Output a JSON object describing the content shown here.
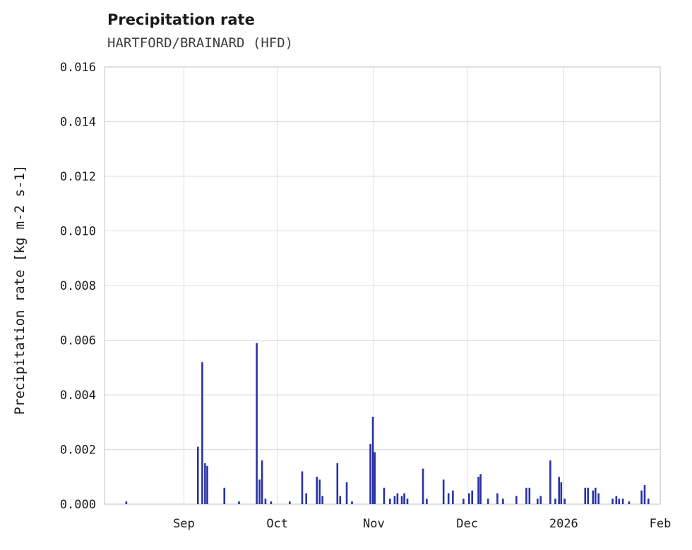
{
  "header": {
    "title": "Precipitation rate",
    "subtitle": "HARTFORD/BRAINARD (HFD)"
  },
  "chart_data": {
    "type": "bar",
    "title": "Precipitation rate",
    "subtitle": "HARTFORD/BRAINARD (HFD)",
    "xlabel": "",
    "ylabel": "Precipitation rate [kg m-2 s-1]",
    "ylim": [
      0,
      0.016
    ],
    "ytick_labels": [
      "0.000",
      "0.002",
      "0.004",
      "0.006",
      "0.008",
      "0.010",
      "0.012",
      "0.014",
      "0.016"
    ],
    "yticks": [
      0.0,
      0.002,
      0.004,
      0.006,
      0.008,
      0.01,
      0.012,
      0.014,
      0.016
    ],
    "x_domain_days": [
      -25.5,
      153
    ],
    "xticks_days": [
      0,
      30,
      61,
      91,
      122,
      153
    ],
    "xtick_labels": [
      "Sep",
      "Oct",
      "Nov",
      "Dec",
      "2026",
      "Feb"
    ],
    "x_units": "days since Sep 1 (2025-08-06 to 2026-02-01)",
    "grid": true,
    "legend": "none",
    "bar_color": "#2832a8",
    "grid_color": "#dcdcdc",
    "border_color": "#cccccc",
    "points": [
      {
        "d": -18.5,
        "v": 0.0001
      },
      {
        "d": 4.5,
        "v": 0.0021
      },
      {
        "d": 5.9,
        "v": 0.0052
      },
      {
        "d": 6.8,
        "v": 0.0015
      },
      {
        "d": 7.5,
        "v": 0.0014
      },
      {
        "d": 13.0,
        "v": 0.0006
      },
      {
        "d": 17.7,
        "v": 0.0001
      },
      {
        "d": 23.4,
        "v": 0.0059
      },
      {
        "d": 24.3,
        "v": 0.0009
      },
      {
        "d": 25.1,
        "v": 0.0016
      },
      {
        "d": 26.2,
        "v": 0.0002
      },
      {
        "d": 28.0,
        "v": 0.0001
      },
      {
        "d": 34.0,
        "v": 0.0001
      },
      {
        "d": 38.0,
        "v": 0.0012
      },
      {
        "d": 39.3,
        "v": 0.0004
      },
      {
        "d": 42.7,
        "v": 0.001
      },
      {
        "d": 43.6,
        "v": 0.0009
      },
      {
        "d": 44.5,
        "v": 0.0003
      },
      {
        "d": 49.3,
        "v": 0.0015
      },
      {
        "d": 50.2,
        "v": 0.0003
      },
      {
        "d": 52.3,
        "v": 0.0008
      },
      {
        "d": 54.0,
        "v": 0.0001
      },
      {
        "d": 59.9,
        "v": 0.0022
      },
      {
        "d": 60.7,
        "v": 0.0032
      },
      {
        "d": 61.3,
        "v": 0.0019
      },
      {
        "d": 64.3,
        "v": 0.0006
      },
      {
        "d": 66.2,
        "v": 0.0002
      },
      {
        "d": 67.7,
        "v": 0.0003
      },
      {
        "d": 68.6,
        "v": 0.0004
      },
      {
        "d": 70.0,
        "v": 0.0003
      },
      {
        "d": 70.8,
        "v": 0.0004
      },
      {
        "d": 71.8,
        "v": 0.0002
      },
      {
        "d": 76.8,
        "v": 0.0013
      },
      {
        "d": 78.0,
        "v": 0.0002
      },
      {
        "d": 83.4,
        "v": 0.0009
      },
      {
        "d": 85.0,
        "v": 0.0004
      },
      {
        "d": 86.4,
        "v": 0.0005
      },
      {
        "d": 89.8,
        "v": 0.0002
      },
      {
        "d": 91.6,
        "v": 0.0004
      },
      {
        "d": 92.6,
        "v": 0.0005
      },
      {
        "d": 94.6,
        "v": 0.001
      },
      {
        "d": 95.3,
        "v": 0.0011
      },
      {
        "d": 97.7,
        "v": 0.0002
      },
      {
        "d": 100.7,
        "v": 0.0004
      },
      {
        "d": 102.5,
        "v": 0.0002
      },
      {
        "d": 106.8,
        "v": 0.0003
      },
      {
        "d": 110.0,
        "v": 0.0006
      },
      {
        "d": 111.0,
        "v": 0.0006
      },
      {
        "d": 113.6,
        "v": 0.0002
      },
      {
        "d": 114.6,
        "v": 0.0003
      },
      {
        "d": 117.7,
        "v": 0.0016
      },
      {
        "d": 119.3,
        "v": 0.0002
      },
      {
        "d": 120.5,
        "v": 0.001
      },
      {
        "d": 121.2,
        "v": 0.0008
      },
      {
        "d": 122.3,
        "v": 0.0002
      },
      {
        "d": 128.9,
        "v": 0.0006
      },
      {
        "d": 129.8,
        "v": 0.0006
      },
      {
        "d": 131.4,
        "v": 0.0005
      },
      {
        "d": 132.2,
        "v": 0.0006
      },
      {
        "d": 133.2,
        "v": 0.0004
      },
      {
        "d": 137.7,
        "v": 0.0002
      },
      {
        "d": 138.9,
        "v": 0.0003
      },
      {
        "d": 139.8,
        "v": 0.0002
      },
      {
        "d": 141.0,
        "v": 0.0002
      },
      {
        "d": 143.0,
        "v": 0.0001
      },
      {
        "d": 147.0,
        "v": 0.0005
      },
      {
        "d": 148.0,
        "v": 0.0007
      },
      {
        "d": 149.2,
        "v": 0.0002
      }
    ]
  }
}
